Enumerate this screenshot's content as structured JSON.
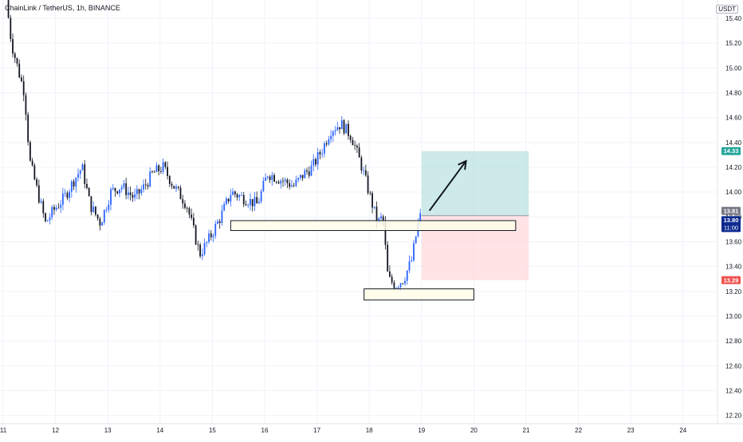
{
  "header": {
    "title": "ChainLink / TetherUS, 1h, BINANCE",
    "currency": "USDT"
  },
  "colors": {
    "up": "#2962ff",
    "down": "#131722",
    "profit_zone": "#b2dfdb",
    "loss_zone": "#ffcdd2",
    "target_badge": "#26a69a",
    "stop_badge": "#ef5350",
    "current_badge": "#0d2b8f",
    "entry_badge": "#787b86",
    "grid": "#f0f3fa",
    "zone_fill": "#fffde7"
  },
  "price_badges": {
    "target": "14.33",
    "entry": "13.81",
    "current_price": "13.80",
    "current_time": "11:00",
    "stop": "13.29"
  },
  "chart_data": {
    "type": "candlestick",
    "title": "ChainLink / TetherUS, 1h, BINANCE",
    "y_unit": "USDT",
    "ylim": [
      12.1,
      15.55
    ],
    "xlim": [
      11.0,
      24.6
    ],
    "y_ticks": [
      "15.40",
      "15.20",
      "15.00",
      "14.80",
      "14.60",
      "14.40",
      "14.20",
      "14.00",
      "13.80",
      "13.60",
      "13.40",
      "13.20",
      "13.00",
      "12.80",
      "12.60",
      "12.40",
      "12.20"
    ],
    "x_ticks": [
      "11",
      "12",
      "13",
      "14",
      "15",
      "16",
      "17",
      "18",
      "19",
      "20",
      "21",
      "22",
      "23",
      "24"
    ],
    "grid": true,
    "price_path": [
      [
        11.1,
        15.55
      ],
      [
        11.2,
        15.2
      ],
      [
        11.35,
        14.95
      ],
      [
        11.45,
        14.8
      ],
      [
        11.55,
        14.25
      ],
      [
        11.7,
        14.0
      ],
      [
        11.85,
        13.75
      ],
      [
        12.0,
        13.85
      ],
      [
        12.2,
        13.95
      ],
      [
        12.4,
        14.1
      ],
      [
        12.55,
        14.2
      ],
      [
        12.7,
        13.9
      ],
      [
        12.9,
        13.75
      ],
      [
        13.1,
        14.0
      ],
      [
        13.3,
        14.05
      ],
      [
        13.55,
        13.95
      ],
      [
        13.75,
        14.05
      ],
      [
        13.9,
        14.15
      ],
      [
        14.1,
        14.2
      ],
      [
        14.3,
        14.05
      ],
      [
        14.55,
        13.9
      ],
      [
        14.8,
        13.5
      ],
      [
        14.95,
        13.6
      ],
      [
        15.2,
        13.8
      ],
      [
        15.4,
        14.0
      ],
      [
        15.65,
        13.95
      ],
      [
        15.9,
        13.9
      ],
      [
        16.1,
        14.15
      ],
      [
        16.35,
        14.1
      ],
      [
        16.6,
        14.05
      ],
      [
        16.8,
        14.15
      ],
      [
        16.95,
        14.2
      ],
      [
        17.15,
        14.35
      ],
      [
        17.3,
        14.5
      ],
      [
        17.5,
        14.55
      ],
      [
        17.7,
        14.45
      ],
      [
        17.9,
        14.2
      ],
      [
        18.1,
        13.9
      ],
      [
        18.2,
        13.75
      ],
      [
        18.3,
        13.8
      ],
      [
        18.4,
        13.3
      ],
      [
        18.55,
        13.25
      ],
      [
        18.7,
        13.3
      ],
      [
        18.85,
        13.45
      ],
      [
        19.0,
        13.8
      ]
    ],
    "annotations": {
      "long_position": {
        "entry": 13.81,
        "target": 14.33,
        "stop": 13.29,
        "x_start": 19.0,
        "x_end": 21.05
      },
      "zones": [
        {
          "x_start": 15.35,
          "x_end": 20.8,
          "y_top": 13.77,
          "y_bottom": 13.69
        },
        {
          "x_start": 17.9,
          "x_end": 20.0,
          "y_top": 13.22,
          "y_bottom": 13.13
        }
      ],
      "arrow": {
        "from": [
          19.15,
          13.85
        ],
        "to": [
          19.85,
          14.25
        ]
      }
    }
  }
}
